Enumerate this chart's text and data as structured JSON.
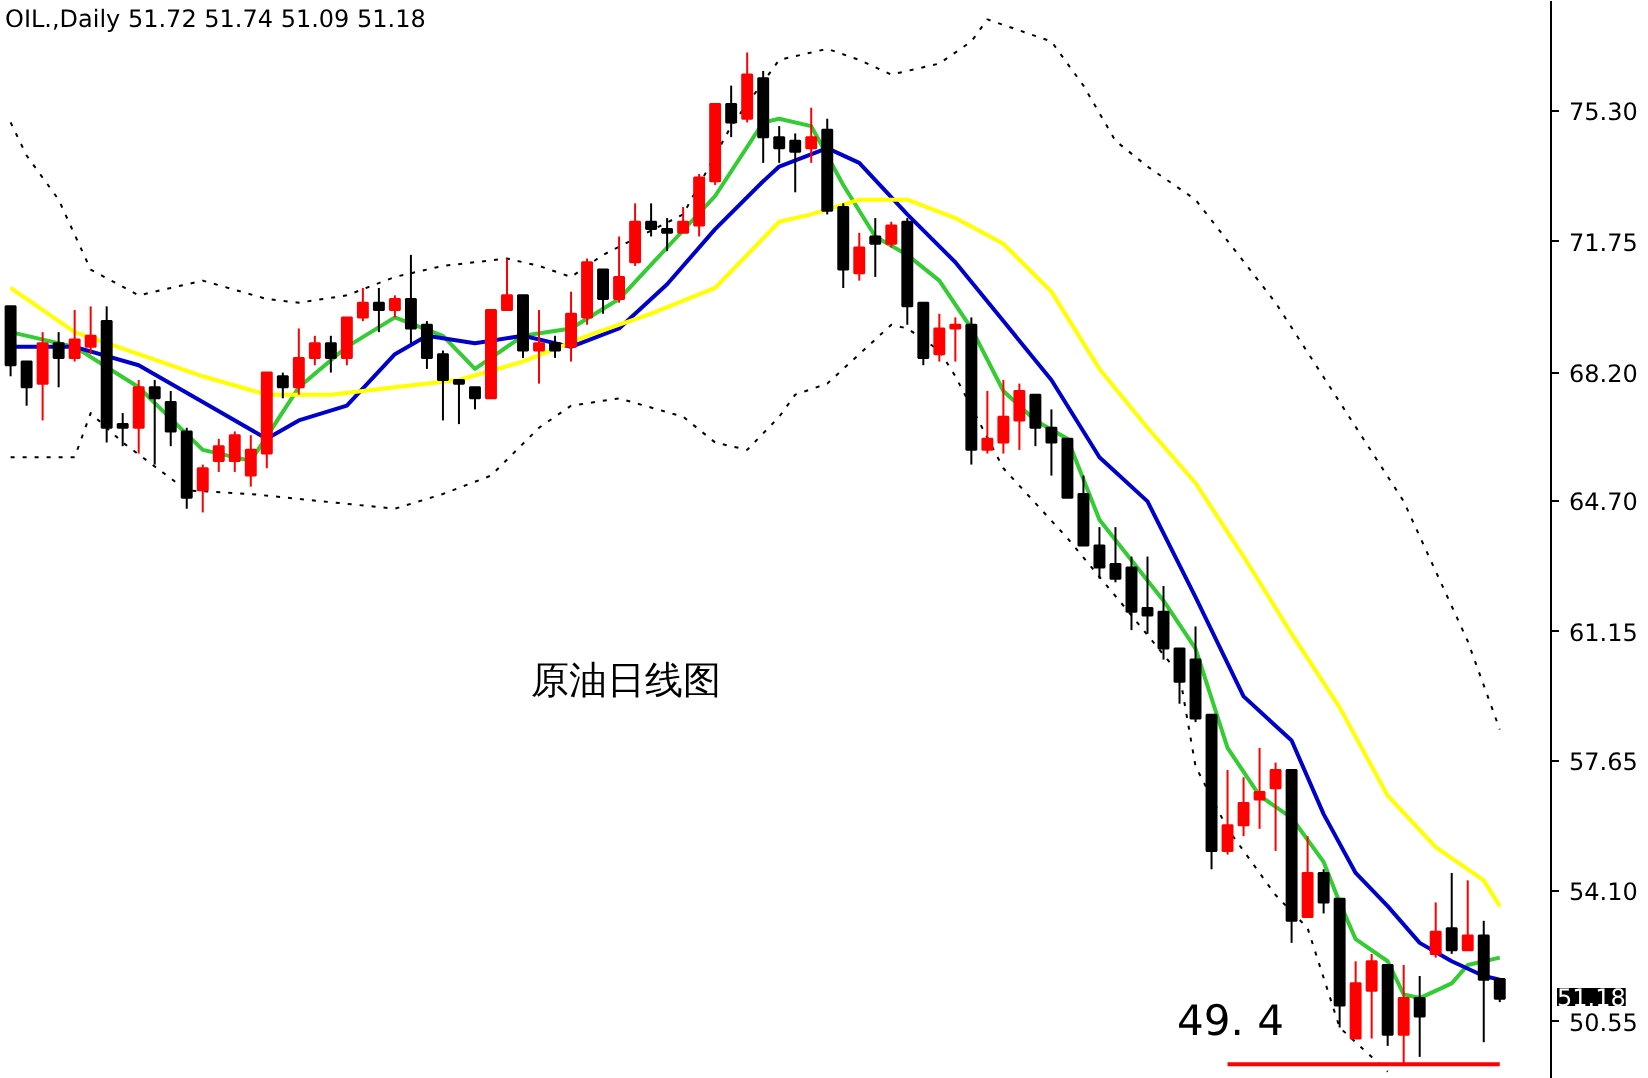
{
  "chart_data": {
    "type": "candlestick",
    "title": "OIL.,Daily  51.72 51.74 51.09 51.18",
    "categories": [
      null,
      null,
      null,
      null,
      null,
      null,
      null,
      null,
      null,
      null,
      null,
      null,
      null,
      null,
      null,
      null,
      null,
      null,
      null,
      null,
      null,
      null,
      null,
      null,
      null,
      null,
      null,
      null,
      null,
      null,
      null,
      null,
      null,
      null,
      null,
      null,
      null,
      null,
      null,
      null,
      null,
      null,
      null,
      null,
      null,
      null,
      null,
      null,
      null,
      null,
      null,
      null,
      null,
      null,
      null,
      null,
      null,
      null,
      null,
      null,
      null,
      null,
      null,
      null,
      null,
      null,
      null,
      null,
      null,
      null,
      null,
      null,
      null,
      null,
      null,
      null,
      null,
      null,
      null,
      null,
      null,
      null,
      null,
      null,
      null,
      null,
      null,
      null,
      null,
      null,
      null,
      null,
      null,
      null
    ],
    "ohlc": [
      [
        70.0,
        70.0,
        68.1,
        68.4
      ],
      [
        68.5,
        68.5,
        67.3,
        67.8
      ],
      [
        67.9,
        69.3,
        66.9,
        69.0
      ],
      [
        69.0,
        69.3,
        67.8,
        68.6
      ],
      [
        68.6,
        69.9,
        68.5,
        69.1
      ],
      [
        68.9,
        70.0,
        68.7,
        69.2
      ],
      [
        69.6,
        70.0,
        66.3,
        66.7
      ],
      [
        66.8,
        67.1,
        66.2,
        66.7
      ],
      [
        66.7,
        68.0,
        66.0,
        67.8
      ],
      [
        67.8,
        68.0,
        65.7,
        67.5
      ],
      [
        67.4,
        67.7,
        66.2,
        66.6
      ],
      [
        66.6,
        66.7,
        64.5,
        64.8
      ],
      [
        65.0,
        65.7,
        64.4,
        65.6
      ],
      [
        65.8,
        66.4,
        65.5,
        66.2
      ],
      [
        65.8,
        66.6,
        65.5,
        66.5
      ],
      [
        65.4,
        66.5,
        65.1,
        66.1
      ],
      [
        66.0,
        68.2,
        65.6,
        68.2
      ],
      [
        68.1,
        68.2,
        67.5,
        67.8
      ],
      [
        67.8,
        69.4,
        67.6,
        68.6
      ],
      [
        68.6,
        69.2,
        68.4,
        69.0
      ],
      [
        69.0,
        69.2,
        68.2,
        68.6
      ],
      [
        68.6,
        69.7,
        68.4,
        69.7
      ],
      [
        69.7,
        70.5,
        69.6,
        70.1
      ],
      [
        70.1,
        70.5,
        69.3,
        69.9
      ],
      [
        69.9,
        70.3,
        69.7,
        70.2
      ],
      [
        70.2,
        71.4,
        69.0,
        69.4
      ],
      [
        69.5,
        69.6,
        68.3,
        68.6
      ],
      [
        68.7,
        68.8,
        66.9,
        68.0
      ],
      [
        68.0,
        68.0,
        66.8,
        67.9
      ],
      [
        67.8,
        67.8,
        67.2,
        67.5
      ],
      [
        67.5,
        69.9,
        67.5,
        69.9
      ],
      [
        69.9,
        71.3,
        69.9,
        70.3
      ],
      [
        70.3,
        70.3,
        68.6,
        68.8
      ],
      [
        68.8,
        69.9,
        67.9,
        69.0
      ],
      [
        69.0,
        69.2,
        68.6,
        68.8
      ],
      [
        68.9,
        70.4,
        68.5,
        69.8
      ],
      [
        69.7,
        71.3,
        69.5,
        71.2
      ],
      [
        71.0,
        71.0,
        69.8,
        70.2
      ],
      [
        70.2,
        71.9,
        70.1,
        70.8
      ],
      [
        71.2,
        72.8,
        71.1,
        72.3
      ],
      [
        72.3,
        72.8,
        71.9,
        72.1
      ],
      [
        72.1,
        72.4,
        71.5,
        72.0
      ],
      [
        72.0,
        72.7,
        72.0,
        72.3
      ],
      [
        72.2,
        73.6,
        71.9,
        73.5
      ],
      [
        73.4,
        75.5,
        73.3,
        75.5
      ],
      [
        75.5,
        76.0,
        74.6,
        75.0
      ],
      [
        75.1,
        76.9,
        75.0,
        76.3
      ],
      [
        76.2,
        76.4,
        73.9,
        74.6
      ],
      [
        74.6,
        74.9,
        73.9,
        74.3
      ],
      [
        74.5,
        74.7,
        73.1,
        74.2
      ],
      [
        74.3,
        75.4,
        73.9,
        74.6
      ],
      [
        74.8,
        75.1,
        72.5,
        72.6
      ],
      [
        72.7,
        72.8,
        70.5,
        71.0
      ],
      [
        70.9,
        72.0,
        70.7,
        71.6
      ],
      [
        71.9,
        72.4,
        70.8,
        71.7
      ],
      [
        71.7,
        72.3,
        71.6,
        72.2
      ],
      [
        72.3,
        72.4,
        69.5,
        70.0
      ],
      [
        70.1,
        70.1,
        68.4,
        68.6
      ],
      [
        68.7,
        69.8,
        68.5,
        69.4
      ],
      [
        69.4,
        69.7,
        68.5,
        69.5
      ],
      [
        69.5,
        69.7,
        65.7,
        66.1
      ],
      [
        66.1,
        67.7,
        66.0,
        66.4
      ],
      [
        66.3,
        68.0,
        66.0,
        67.0
      ],
      [
        66.9,
        67.9,
        66.1,
        67.7
      ],
      [
        67.6,
        67.6,
        66.2,
        66.7
      ],
      [
        66.7,
        67.2,
        65.4,
        66.3
      ],
      [
        66.4,
        66.4,
        64.8,
        64.8
      ],
      [
        64.9,
        65.4,
        63.5,
        63.5
      ],
      [
        63.5,
        64.0,
        62.6,
        62.9
      ],
      [
        63.0,
        64.0,
        62.5,
        62.6
      ],
      [
        62.9,
        63.2,
        61.2,
        61.7
      ],
      [
        61.8,
        63.2,
        61.1,
        61.6
      ],
      [
        61.7,
        62.4,
        60.4,
        60.7
      ],
      [
        60.7,
        60.7,
        59.2,
        59.8
      ],
      [
        60.4,
        61.3,
        58.7,
        58.8
      ],
      [
        58.9,
        58.9,
        54.7,
        55.2
      ],
      [
        55.2,
        57.4,
        55.1,
        55.9
      ],
      [
        55.9,
        57.2,
        55.6,
        56.5
      ],
      [
        56.6,
        58.0,
        55.8,
        56.8
      ],
      [
        56.9,
        57.6,
        55.2,
        57.4
      ],
      [
        57.4,
        57.4,
        52.7,
        53.3
      ],
      [
        53.4,
        55.6,
        53.4,
        54.6
      ],
      [
        54.6,
        54.7,
        53.5,
        53.8
      ],
      [
        53.9,
        53.9,
        50.4,
        51.0
      ],
      [
        50.1,
        52.2,
        50.1,
        51.6
      ],
      [
        51.4,
        52.4,
        50.1,
        52.2
      ],
      [
        52.1,
        52.1,
        49.9,
        50.2
      ],
      [
        50.2,
        52.1,
        49.4,
        51.2
      ],
      [
        51.2,
        51.8,
        49.6,
        50.7
      ],
      [
        52.4,
        53.8,
        52.3,
        53.0
      ],
      [
        53.1,
        54.6,
        52.4,
        52.5
      ],
      [
        52.5,
        54.4,
        52.5,
        52.9
      ],
      [
        52.9,
        53.3,
        50.0,
        51.7
      ],
      [
        51.72,
        51.74,
        51.09,
        51.18
      ]
    ],
    "colors": [
      "#000000",
      "#000000",
      "#ff0000",
      "#000000",
      "#ff0000",
      "#ff0000",
      "#000000",
      "#000000",
      "#ff0000",
      "#000000",
      "#000000",
      "#000000",
      "#ff0000",
      "#ff0000",
      "#ff0000",
      "#ff0000",
      "#ff0000",
      "#000000",
      "#ff0000",
      "#ff0000",
      "#000000",
      "#ff0000",
      "#ff0000",
      "#000000",
      "#ff0000",
      "#000000",
      "#000000",
      "#000000",
      "#000000",
      "#000000",
      "#ff0000",
      "#ff0000",
      "#000000",
      "#ff0000",
      "#000000",
      "#ff0000",
      "#ff0000",
      "#000000",
      "#ff0000",
      "#ff0000",
      "#000000",
      "#000000",
      "#ff0000",
      "#ff0000",
      "#ff0000",
      "#000000",
      "#ff0000",
      "#000000",
      "#000000",
      "#000000",
      "#ff0000",
      "#000000",
      "#000000",
      "#ff0000",
      "#000000",
      "#ff0000",
      "#000000",
      "#000000",
      "#ff0000",
      "#ff0000",
      "#000000",
      "#ff0000",
      "#ff0000",
      "#ff0000",
      "#000000",
      "#000000",
      "#000000",
      "#000000",
      "#000000",
      "#000000",
      "#000000",
      "#000000",
      "#000000",
      "#000000",
      "#000000",
      "#000000",
      "#ff0000",
      "#ff0000",
      "#ff0000",
      "#ff0000",
      "#000000",
      "#ff0000",
      "#000000",
      "#000000",
      "#ff0000",
      "#ff0000",
      "#000000",
      "#ff0000",
      "#000000",
      "#ff0000",
      "#000000",
      "#ff0000",
      "#000000",
      "#000000"
    ],
    "series": [
      {
        "type": "line",
        "color": "#33cc33",
        "values": [
          69.3,
          null,
          null,
          null,
          68.9,
          null,
          null,
          null,
          67.8,
          null,
          null,
          null,
          66.1,
          null,
          null,
          65.8,
          null,
          null,
          67.8,
          null,
          null,
          68.9,
          null,
          null,
          69.7,
          null,
          null,
          69.2,
          null,
          68.3,
          null,
          null,
          69.2,
          null,
          null,
          69.4,
          null,
          null,
          70.2,
          null,
          null,
          71.6,
          null,
          null,
          73.0,
          null,
          null,
          75.0,
          75.1,
          null,
          74.9,
          null,
          73.3,
          null,
          71.9,
          null,
          71.4,
          null,
          70.7,
          null,
          69.4,
          null,
          67.7,
          null,
          66.9,
          null,
          66.4,
          null,
          64.2,
          null,
          63.1,
          null,
          62.0,
          null,
          60.7,
          null,
          58.0,
          null,
          56.7,
          null,
          56.1,
          null,
          54.9,
          53.8,
          52.8,
          null,
          52.2,
          51.3,
          51.2,
          null,
          51.6,
          52.1,
          null,
          52.3
        ]
      },
      {
        "type": "line",
        "color": "#0000cc",
        "values": [
          68.9,
          null,
          null,
          null,
          68.9,
          null,
          null,
          null,
          68.4,
          null,
          null,
          null,
          67.4,
          null,
          null,
          null,
          66.4,
          null,
          66.9,
          null,
          null,
          67.3,
          null,
          null,
          68.7,
          null,
          69.2,
          null,
          null,
          69.0,
          null,
          null,
          69.2,
          null,
          null,
          68.9,
          null,
          null,
          69.4,
          null,
          null,
          70.6,
          null,
          null,
          72.1,
          null,
          null,
          73.4,
          73.8,
          null,
          null,
          74.3,
          null,
          73.9,
          null,
          null,
          72.5,
          null,
          null,
          71.2,
          null,
          null,
          69.6,
          null,
          null,
          68.0,
          null,
          null,
          65.9,
          null,
          null,
          64.7,
          null,
          null,
          62.1,
          null,
          null,
          59.4,
          null,
          null,
          58.2,
          null,
          56.2,
          null,
          54.6,
          null,
          53.7,
          null,
          52.7,
          null,
          52.2,
          null,
          51.8,
          51.7
        ]
      },
      {
        "type": "line",
        "color": "#ffff00",
        "values": [
          70.5,
          null,
          null,
          null,
          69.3,
          null,
          null,
          null,
          68.7,
          null,
          null,
          null,
          68.1,
          null,
          null,
          null,
          67.6,
          null,
          null,
          null,
          67.6,
          null,
          null,
          null,
          67.8,
          null,
          null,
          null,
          68.0,
          null,
          null,
          null,
          68.5,
          null,
          null,
          null,
          69.2,
          null,
          null,
          null,
          69.8,
          null,
          null,
          null,
          70.5,
          null,
          null,
          null,
          72.3,
          null,
          72.5,
          null,
          null,
          72.9,
          null,
          null,
          72.9,
          null,
          null,
          72.4,
          null,
          null,
          71.7,
          null,
          null,
          70.4,
          null,
          null,
          68.3,
          null,
          null,
          66.7,
          null,
          null,
          65.2,
          null,
          null,
          63.2,
          null,
          null,
          61.1,
          null,
          null,
          59.1,
          null,
          null,
          56.7,
          null,
          null,
          55.3,
          null,
          null,
          54.4,
          53.7
        ]
      },
      {
        "type": "line",
        "color": "#000000",
        "line_style": "dotted",
        "values": [
          75.0,
          74.1,
          null,
          72.9,
          null,
          71.0,
          null,
          null,
          70.3,
          null,
          70.5,
          null,
          70.7,
          null,
          null,
          null,
          70.2,
          null,
          70.1,
          null,
          null,
          70.3,
          null,
          null,
          70.8,
          null,
          null,
          71.1,
          null,
          null,
          null,
          71.3,
          null,
          71.1,
          null,
          70.8,
          null,
          71.4,
          null,
          null,
          null,
          null,
          72.5,
          null,
          null,
          74.9,
          null,
          null,
          76.7,
          null,
          null,
          77.0,
          null,
          76.7,
          null,
          76.3,
          null,
          null,
          76.6,
          null,
          77.2,
          77.8,
          null,
          null,
          null,
          77.2,
          null,
          76.0,
          null,
          74.5,
          null,
          73.8,
          null,
          null,
          72.9,
          null,
          null,
          null,
          null,
          70.1,
          null,
          null,
          null,
          null,
          null,
          null,
          null,
          64.7,
          null,
          null,
          null,
          60.9,
          null,
          58.5
        ]
      },
      {
        "type": "line",
        "color": "#000000",
        "line_style": "dotted",
        "values": [
          65.9,
          null,
          null,
          null,
          65.9,
          67.1,
          null,
          66.3,
          null,
          null,
          null,
          65.0,
          null,
          null,
          null,
          64.9,
          null,
          null,
          null,
          null,
          null,
          null,
          null,
          null,
          64.5,
          null,
          null,
          64.9,
          null,
          null,
          65.4,
          null,
          null,
          66.7,
          null,
          67.3,
          null,
          null,
          67.5,
          null,
          null,
          null,
          67.0,
          null,
          66.3,
          null,
          66.1,
          null,
          67.0,
          67.6,
          null,
          67.9,
          null,
          null,
          null,
          69.5,
          69.4,
          null,
          68.8,
          68.1,
          null,
          null,
          65.6,
          null,
          null,
          null,
          63.7,
          null,
          null,
          null,
          61.6,
          null,
          null,
          60.0,
          57.5,
          null,
          55.8,
          null,
          null,
          54.0,
          null,
          53.1,
          null,
          50.4,
          null,
          null,
          49.2,
          null,
          null,
          null,
          null,
          null,
          null,
          null
        ]
      },
      {
        "type": "line",
        "color": "#ff0000",
        "values": [
          null,
          null,
          null,
          null,
          null,
          null,
          null,
          null,
          null,
          null,
          null,
          null,
          null,
          null,
          null,
          null,
          null,
          null,
          null,
          null,
          null,
          null,
          null,
          null,
          null,
          null,
          null,
          null,
          null,
          null,
          null,
          null,
          null,
          null,
          null,
          null,
          null,
          null,
          null,
          null,
          null,
          null,
          null,
          null,
          null,
          null,
          null,
          null,
          null,
          null,
          null,
          null,
          null,
          null,
          null,
          null,
          null,
          null,
          null,
          null,
          null,
          null,
          null,
          null,
          null,
          null,
          null,
          null,
          null,
          null,
          null,
          null,
          null,
          null,
          null,
          null,
          49.4,
          49.4,
          49.4,
          49.4,
          49.4,
          49.4,
          49.4,
          49.4,
          49.4,
          49.4,
          49.4,
          49.4,
          49.4,
          49.4,
          49.4,
          49.4,
          49.4,
          49.4
        ]
      }
    ],
    "ylim": [
      49.0,
      78.3
    ],
    "yticks": [
      {
        "value": 75.3,
        "label": "75.30"
      },
      71.75,
      {
        "value": 68.2,
        "label": "68.20"
      },
      {
        "value": 64.7,
        "label": "64.70"
      },
      61.15,
      57.65,
      {
        "value": 54.1,
        "label": "54.10"
      },
      50.55
    ],
    "tick_labels": "y",
    "annotations": [
      "原油日线图",
      "49. 4",
      "51.18"
    ]
  }
}
